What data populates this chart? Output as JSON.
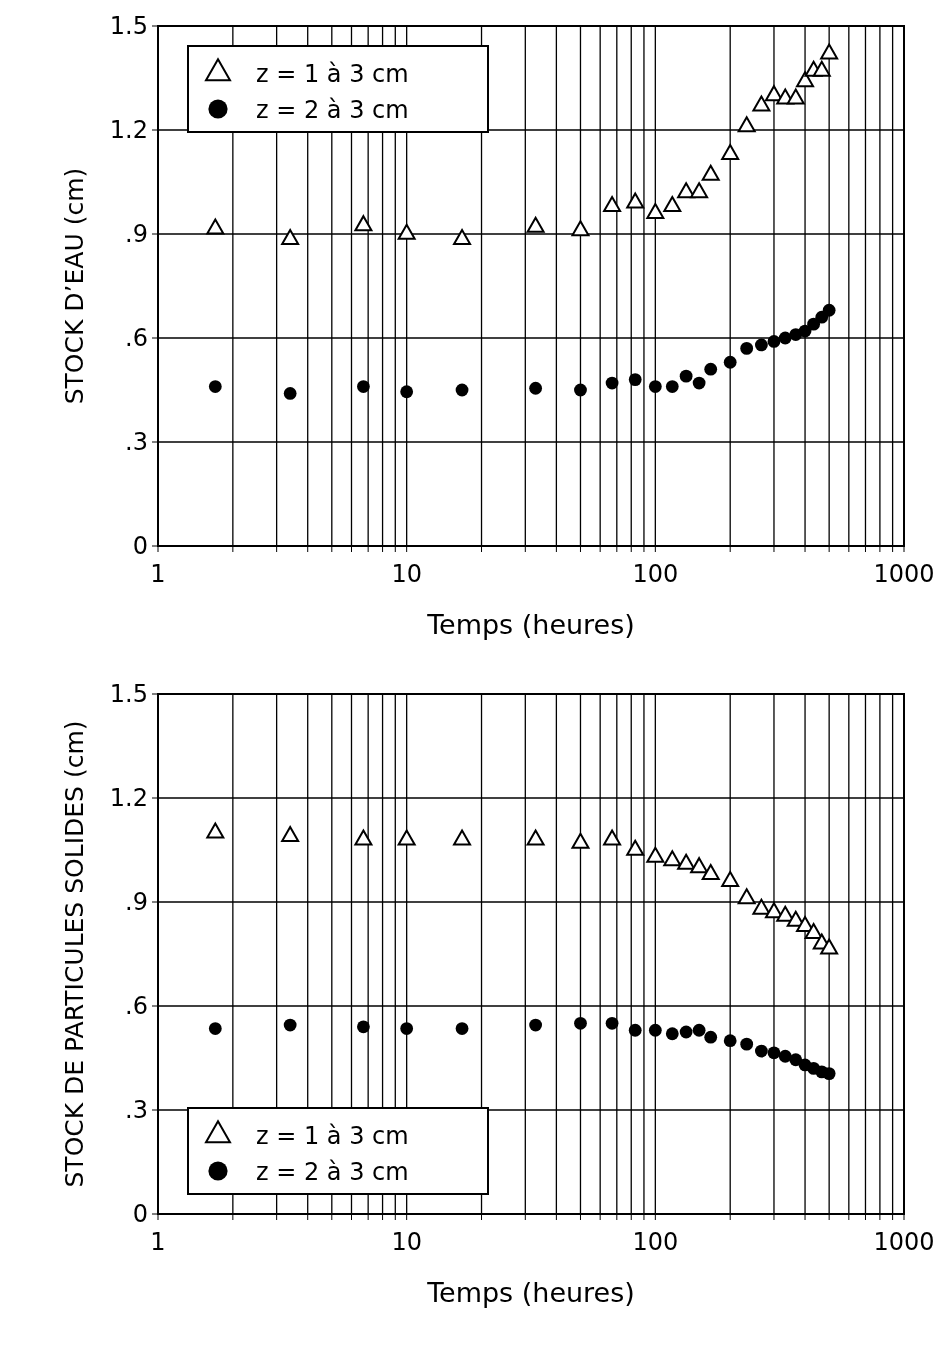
{
  "chart_data": [
    {
      "type": "scatter",
      "xlabel": "Temps (heures)",
      "ylabel": "STOCK D’EAU (cm)",
      "log": "x",
      "grid": true,
      "legend": "top left",
      "xlim": [
        1,
        1000
      ],
      "ylim": [
        0,
        1.5
      ],
      "xticks": [
        1,
        {
          "value": 2,
          "label": null
        },
        {
          "value": 3,
          "label": null
        },
        {
          "value": 4,
          "label": null
        },
        {
          "value": 5,
          "label": null
        },
        {
          "value": 6,
          "label": null
        },
        {
          "value": 7,
          "label": null
        },
        {
          "value": 8,
          "label": null
        },
        {
          "value": 9,
          "label": null
        },
        10,
        {
          "value": 20,
          "label": null
        },
        {
          "value": 30,
          "label": null
        },
        {
          "value": 40,
          "label": null
        },
        {
          "value": 50,
          "label": null
        },
        {
          "value": 60,
          "label": null
        },
        {
          "value": 70,
          "label": null
        },
        {
          "value": 80,
          "label": null
        },
        {
          "value": 90,
          "label": null
        },
        100,
        {
          "value": 200,
          "label": null
        },
        {
          "value": 300,
          "label": null
        },
        {
          "value": 400,
          "label": null
        },
        {
          "value": 500,
          "label": null
        },
        {
          "value": 600,
          "label": null
        },
        {
          "value": 700,
          "label": null
        },
        {
          "value": 800,
          "label": null
        },
        {
          "value": 900,
          "label": null
        },
        1000
      ],
      "yticks": [
        0,
        {
          "value": 0.3,
          "label": ".3"
        },
        {
          "value": 0.6,
          "label": ".6"
        },
        {
          "value": 0.9,
          "label": ".9"
        },
        1.2,
        1.5
      ],
      "x": [
        1.7,
        3.4,
        6.7,
        10,
        16.7,
        33,
        50,
        67,
        83,
        100,
        117,
        133,
        150,
        167,
        200,
        233,
        267,
        300,
        333,
        367,
        400,
        433,
        467,
        500
      ],
      "series": [
        {
          "name": "z = 1 à 3 cm",
          "color": "#000000",
          "marker": "triangle",
          "values": [
            0.915,
            0.885,
            0.925,
            0.9,
            0.885,
            0.92,
            0.91,
            0.98,
            0.99,
            0.96,
            0.98,
            1.02,
            1.02,
            1.07,
            1.13,
            1.21,
            1.27,
            1.3,
            1.29,
            1.29,
            1.34,
            1.37,
            1.37,
            1.42
          ]
        },
        {
          "name": "z = 2 à 3 cm",
          "color": "#000000",
          "marker": "circle",
          "values": [
            0.46,
            0.44,
            0.46,
            0.445,
            0.45,
            0.455,
            0.45,
            0.47,
            0.48,
            0.46,
            0.46,
            0.49,
            0.47,
            0.51,
            0.53,
            0.57,
            0.58,
            0.59,
            0.6,
            0.61,
            0.62,
            0.64,
            0.66,
            0.68
          ]
        }
      ]
    },
    {
      "type": "scatter",
      "xlabel": "Temps (heures)",
      "ylabel": "STOCK DE PARTICULES SOLIDES (cm)",
      "log": "x",
      "grid": true,
      "legend": "bottom left",
      "xlim": [
        1,
        1000
      ],
      "ylim": [
        0,
        1.5
      ],
      "xticks": [
        1,
        {
          "value": 2,
          "label": null
        },
        {
          "value": 3,
          "label": null
        },
        {
          "value": 4,
          "label": null
        },
        {
          "value": 5,
          "label": null
        },
        {
          "value": 6,
          "label": null
        },
        {
          "value": 7,
          "label": null
        },
        {
          "value": 8,
          "label": null
        },
        {
          "value": 9,
          "label": null
        },
        10,
        {
          "value": 20,
          "label": null
        },
        {
          "value": 30,
          "label": null
        },
        {
          "value": 40,
          "label": null
        },
        {
          "value": 50,
          "label": null
        },
        {
          "value": 60,
          "label": null
        },
        {
          "value": 70,
          "label": null
        },
        {
          "value": 80,
          "label": null
        },
        {
          "value": 90,
          "label": null
        },
        100,
        {
          "value": 200,
          "label": null
        },
        {
          "value": 300,
          "label": null
        },
        {
          "value": 400,
          "label": null
        },
        {
          "value": 500,
          "label": null
        },
        {
          "value": 600,
          "label": null
        },
        {
          "value": 700,
          "label": null
        },
        {
          "value": 800,
          "label": null
        },
        {
          "value": 900,
          "label": null
        },
        1000
      ],
      "yticks": [
        0,
        {
          "value": 0.3,
          "label": ".3"
        },
        {
          "value": 0.6,
          "label": ".6"
        },
        {
          "value": 0.9,
          "label": ".9"
        },
        1.2,
        1.5
      ],
      "x": [
        1.7,
        3.4,
        6.7,
        10,
        16.7,
        33,
        50,
        67,
        83,
        100,
        117,
        133,
        150,
        167,
        200,
        233,
        267,
        300,
        333,
        367,
        400,
        433,
        467,
        500
      ],
      "series": [
        {
          "name": "z = 1 à 3 cm",
          "color": "#000000",
          "marker": "triangle",
          "values": [
            1.1,
            1.09,
            1.08,
            1.08,
            1.08,
            1.08,
            1.07,
            1.08,
            1.05,
            1.03,
            1.02,
            1.01,
            1.0,
            0.98,
            0.96,
            0.91,
            0.88,
            0.87,
            0.86,
            0.845,
            0.83,
            0.81,
            0.78,
            0.765
          ]
        },
        {
          "name": "z = 2 à 3 cm",
          "color": "#000000",
          "marker": "circle",
          "values": [
            0.535,
            0.545,
            0.54,
            0.535,
            0.535,
            0.545,
            0.55,
            0.55,
            0.53,
            0.53,
            0.52,
            0.525,
            0.53,
            0.51,
            0.5,
            0.49,
            0.47,
            0.465,
            0.455,
            0.445,
            0.43,
            0.42,
            0.41,
            0.405
          ]
        }
      ]
    }
  ]
}
